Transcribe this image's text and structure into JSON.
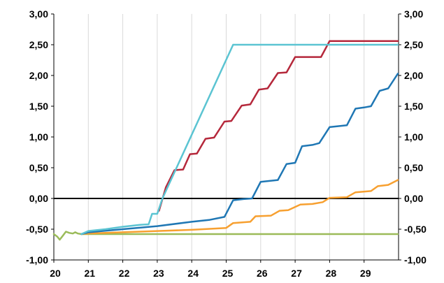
{
  "chart_data": {
    "type": "line",
    "title": "",
    "xlabel": "",
    "ylabel": "",
    "xlim": [
      20,
      30
    ],
    "ylim": [
      -1.0,
      3.0
    ],
    "x_ticks": [
      20,
      21,
      22,
      23,
      24,
      25,
      26,
      27,
      28,
      29
    ],
    "x_tick_labels": [
      "20",
      "21",
      "22",
      "23",
      "24",
      "25",
      "26",
      "27",
      "28",
      "29"
    ],
    "y_ticks": [
      -1.0,
      -0.5,
      0.0,
      0.5,
      1.0,
      1.5,
      2.0,
      2.5,
      3.0
    ],
    "y_tick_labels": [
      "-1,00",
      "-0,50",
      "0,00",
      "0,50",
      "1,00",
      "1,50",
      "2,00",
      "2,50",
      "3,00"
    ],
    "y2_tick_labels": [
      "-1,00",
      "-0,50",
      "0,00",
      "0,50",
      "1,00",
      "1,50",
      "2,00",
      "2,50",
      "3,00"
    ],
    "grid": "vertical",
    "legend": "none",
    "series": [
      {
        "color": "#9bbb59",
        "points": [
          [
            20.0,
            -0.58
          ],
          [
            20.1,
            -0.62
          ],
          [
            20.17,
            -0.67
          ],
          [
            20.27,
            -0.6
          ],
          [
            20.35,
            -0.54
          ],
          [
            20.45,
            -0.56
          ],
          [
            20.55,
            -0.57
          ],
          [
            20.62,
            -0.55
          ],
          [
            20.7,
            -0.57
          ],
          [
            20.8,
            -0.58
          ],
          [
            21.0,
            -0.58
          ],
          [
            22.0,
            -0.58
          ],
          [
            23.0,
            -0.58
          ],
          [
            24.0,
            -0.58
          ],
          [
            25.0,
            -0.58
          ],
          [
            26.0,
            -0.58
          ],
          [
            27.0,
            -0.58
          ],
          [
            28.0,
            -0.58
          ],
          [
            29.0,
            -0.58
          ],
          [
            29.98,
            -0.58
          ]
        ]
      },
      {
        "color": "#f7a030",
        "points": [
          [
            20.8,
            -0.58
          ],
          [
            21.0,
            -0.57
          ],
          [
            22.0,
            -0.55
          ],
          [
            23.0,
            -0.53
          ],
          [
            24.0,
            -0.51
          ],
          [
            25.0,
            -0.48
          ],
          [
            25.2,
            -0.4
          ],
          [
            25.7,
            -0.38
          ],
          [
            25.85,
            -0.29
          ],
          [
            26.3,
            -0.28
          ],
          [
            26.55,
            -0.2
          ],
          [
            26.8,
            -0.19
          ],
          [
            27.15,
            -0.1
          ],
          [
            27.5,
            -0.09
          ],
          [
            27.8,
            -0.06
          ],
          [
            28.0,
            0.01
          ],
          [
            28.5,
            0.02
          ],
          [
            28.75,
            0.1
          ],
          [
            29.2,
            0.12
          ],
          [
            29.4,
            0.2
          ],
          [
            29.7,
            0.22
          ],
          [
            29.98,
            0.3
          ]
        ]
      },
      {
        "color": "#1f77b4",
        "points": [
          [
            20.8,
            -0.58
          ],
          [
            21.0,
            -0.55
          ],
          [
            22.0,
            -0.5
          ],
          [
            23.0,
            -0.45
          ],
          [
            24.0,
            -0.38
          ],
          [
            24.5,
            -0.35
          ],
          [
            24.95,
            -0.3
          ],
          [
            25.2,
            -0.03
          ],
          [
            25.5,
            -0.01
          ],
          [
            25.75,
            0.0
          ],
          [
            26.0,
            0.27
          ],
          [
            26.5,
            0.3
          ],
          [
            26.75,
            0.56
          ],
          [
            27.0,
            0.58
          ],
          [
            27.2,
            0.85
          ],
          [
            27.5,
            0.87
          ],
          [
            27.7,
            0.9
          ],
          [
            28.0,
            1.16
          ],
          [
            28.5,
            1.19
          ],
          [
            28.75,
            1.46
          ],
          [
            29.0,
            1.48
          ],
          [
            29.2,
            1.5
          ],
          [
            29.45,
            1.75
          ],
          [
            29.7,
            1.79
          ],
          [
            29.98,
            2.03
          ]
        ]
      },
      {
        "color": "#b5283b",
        "points": [
          [
            23.05,
            -0.2
          ],
          [
            23.25,
            0.18
          ],
          [
            23.5,
            0.46
          ],
          [
            23.75,
            0.47
          ],
          [
            23.95,
            0.72
          ],
          [
            24.15,
            0.73
          ],
          [
            24.4,
            0.97
          ],
          [
            24.65,
            0.99
          ],
          [
            24.95,
            1.25
          ],
          [
            25.15,
            1.26
          ],
          [
            25.45,
            1.51
          ],
          [
            25.7,
            1.53
          ],
          [
            25.95,
            1.77
          ],
          [
            26.2,
            1.79
          ],
          [
            26.5,
            2.04
          ],
          [
            26.75,
            2.05
          ],
          [
            27.0,
            2.3
          ],
          [
            27.75,
            2.3
          ],
          [
            28.0,
            2.56
          ],
          [
            29.98,
            2.56
          ]
        ]
      },
      {
        "color": "#5bc4d2",
        "points": [
          [
            20.8,
            -0.58
          ],
          [
            21.0,
            -0.53
          ],
          [
            21.5,
            -0.5
          ],
          [
            22.0,
            -0.46
          ],
          [
            22.5,
            -0.43
          ],
          [
            22.75,
            -0.42
          ],
          [
            22.85,
            -0.25
          ],
          [
            23.0,
            -0.25
          ],
          [
            23.15,
            0.0
          ],
          [
            25.2,
            2.5
          ],
          [
            29.98,
            2.5
          ]
        ]
      }
    ]
  }
}
